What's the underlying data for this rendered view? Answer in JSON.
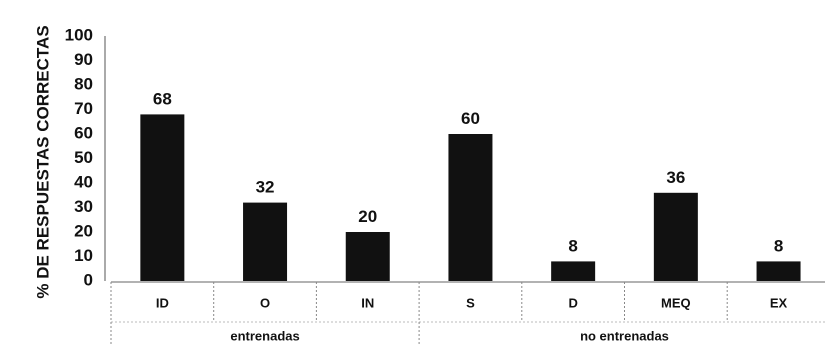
{
  "chart_data": {
    "type": "bar",
    "categories": [
      "ID",
      "O",
      "IN",
      "S",
      "D",
      "MEQ",
      "EX"
    ],
    "values": [
      68,
      32,
      20,
      60,
      8,
      36,
      8
    ],
    "data_labels": [
      "68",
      "32",
      "20",
      "60",
      "8",
      "36",
      "8"
    ],
    "groups": [
      {
        "label": "entrenadas",
        "categories": [
          "ID",
          "O",
          "IN"
        ]
      },
      {
        "label": "no entrenadas",
        "categories": [
          "S",
          "D",
          "MEQ",
          "EX"
        ]
      }
    ],
    "ylabel": "% DE RESPUESTAS CORRECTAS",
    "ylim": [
      0,
      100
    ],
    "yticks": [
      "0",
      "10",
      "20",
      "30",
      "40",
      "50",
      "60",
      "70",
      "80",
      "90",
      "100"
    ],
    "grid": false,
    "legend": "none",
    "bar_color": "#111111"
  }
}
